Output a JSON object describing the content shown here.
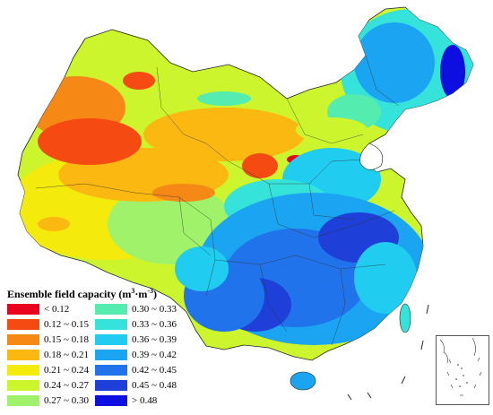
{
  "legend": {
    "title_main": "Ensemble field capacity (m",
    "title_sup1": "3",
    "title_mid": "·m",
    "title_sup2": "-3",
    "title_end": ")",
    "items": [
      {
        "label": "< 0.12",
        "color": "#e8001c"
      },
      {
        "label": "0.30 ~ 0.33",
        "color": "#55ecb0"
      },
      {
        "label": "0.12 ~ 0.15",
        "color": "#f54a12"
      },
      {
        "label": "0.33 ~ 0.36",
        "color": "#36e3db"
      },
      {
        "label": "0.15 ~ 0.18",
        "color": "#f68915"
      },
      {
        "label": "0.36 ~ 0.39",
        "color": "#20ccf0"
      },
      {
        "label": "0.18 ~ 0.21",
        "color": "#fbb810"
      },
      {
        "label": "0.39 ~ 0.42",
        "color": "#1aa4f2"
      },
      {
        "label": "0.21 ~ 0.24",
        "color": "#f4ea0c"
      },
      {
        "label": "0.42 ~ 0.45",
        "color": "#2173ec"
      },
      {
        "label": "0.24 ~ 0.27",
        "color": "#cdf52d"
      },
      {
        "label": "0.45 ~ 0.48",
        "color": "#1e40d8"
      },
      {
        "label": "0.27 ~ 0.30",
        "color": "#9ff26a"
      },
      {
        "label": "> 0.48",
        "color": "#0d0fe0"
      }
    ]
  }
}
